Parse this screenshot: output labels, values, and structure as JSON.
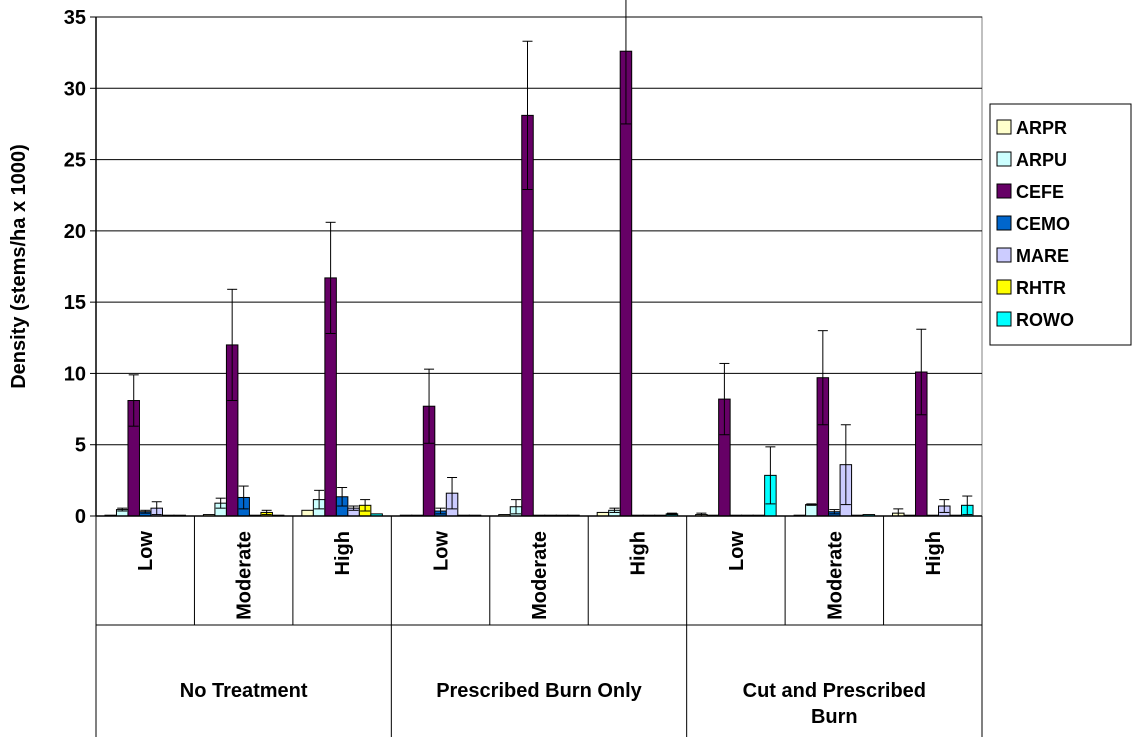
{
  "chart_data": {
    "type": "bar",
    "title": "",
    "xlabel": "",
    "ylabel": "Density (stems/ha x 1000)",
    "ylim": [
      0,
      35
    ],
    "yticks": [
      0,
      5,
      10,
      15,
      20,
      25,
      30,
      35
    ],
    "grid": true,
    "legend_position": "right",
    "groups": [
      {
        "label": "No Treatment",
        "categories": [
          "Low",
          "Moderate",
          "High"
        ]
      },
      {
        "label": "Prescribed Burn Only",
        "categories": [
          "Low",
          "Moderate",
          "High"
        ]
      },
      {
        "label": "Cut and Prescribed Burn",
        "categories": [
          "Low",
          "Moderate",
          "High"
        ]
      }
    ],
    "series": [
      {
        "name": "ARPR",
        "color": "#FFFFCC",
        "values": [
          0.05,
          0.1,
          0.4,
          0.05,
          0.1,
          0.25,
          0.1,
          0.05,
          0.2
        ],
        "errors": [
          0,
          0,
          0,
          0,
          0,
          0,
          0.1,
          0,
          0.3
        ]
      },
      {
        "name": "ARPU",
        "color": "#CCFFFF",
        "values": [
          0.45,
          0.9,
          1.15,
          0.05,
          0.65,
          0.4,
          0.05,
          0.8,
          0.05
        ],
        "errors": [
          0.1,
          0.35,
          0.65,
          0,
          0.5,
          0.15,
          0,
          0.05,
          0
        ]
      },
      {
        "name": "CEFE",
        "color": "#660066",
        "values": [
          8.1,
          12.0,
          16.7,
          7.7,
          28.1,
          32.6,
          8.2,
          9.7,
          10.1
        ],
        "errors": [
          1.8,
          3.9,
          3.9,
          2.6,
          5.2,
          5.1,
          2.5,
          3.3,
          3.0
        ]
      },
      {
        "name": "CEMO",
        "color": "#0066CC",
        "values": [
          0.3,
          1.3,
          1.35,
          0.35,
          0.05,
          0.05,
          0.05,
          0.3,
          0.05
        ],
        "errors": [
          0.1,
          0.8,
          0.65,
          0.2,
          0,
          0,
          0,
          0.15,
          0
        ]
      },
      {
        "name": "MARE",
        "color": "#CCCCFF",
        "values": [
          0.55,
          0.05,
          0.55,
          1.6,
          0.05,
          0.05,
          0.05,
          3.6,
          0.7
        ],
        "errors": [
          0.45,
          0,
          0.15,
          1.1,
          0,
          0,
          0,
          2.8,
          0.45
        ]
      },
      {
        "name": "RHTR",
        "color": "#FFFF00",
        "values": [
          0.05,
          0.25,
          0.75,
          0.05,
          0.05,
          0.05,
          0.05,
          0.05,
          0.05
        ],
        "errors": [
          0,
          0.15,
          0.4,
          0,
          0,
          0,
          0,
          0,
          0
        ]
      },
      {
        "name": "ROWO",
        "color": "#00FFFF",
        "values": [
          0.05,
          0.05,
          0.15,
          0.05,
          0.05,
          0.15,
          2.85,
          0.1,
          0.75
        ],
        "errors": [
          0,
          0,
          0,
          0,
          0,
          0.05,
          2.0,
          0,
          0.65
        ]
      }
    ]
  }
}
